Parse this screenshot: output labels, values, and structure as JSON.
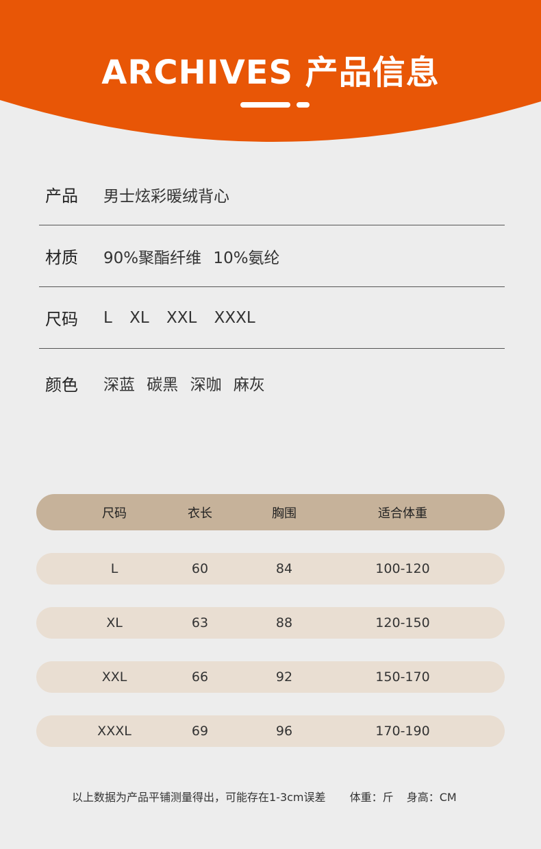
{
  "colors": {
    "accent": "#e85606",
    "background": "#ededed",
    "table_header": "#c6b29a",
    "table_row": "#e9ded2"
  },
  "header": {
    "title": "ARCHIVES 产品信息"
  },
  "info": [
    {
      "label": "产品",
      "value": "男士炫彩暖绒背心"
    },
    {
      "label": "材质",
      "value": "90%聚酯纤维 10%氨纶"
    },
    {
      "label": "尺码",
      "value": "L XL XXL XXXL"
    },
    {
      "label": "颜色",
      "value": "深蓝 碳黑 深咖 麻灰"
    }
  ],
  "size_table": {
    "headers": [
      "尺码",
      "衣长",
      "胸围",
      "适合体重"
    ],
    "rows": [
      [
        "L",
        "60",
        "84",
        "100-120"
      ],
      [
        "XL",
        "63",
        "88",
        "120-150"
      ],
      [
        "XXL",
        "66",
        "92",
        "150-170"
      ],
      [
        "XXXL",
        "69",
        "96",
        "170-190"
      ]
    ]
  },
  "note": {
    "text": "以上数据为产品平铺测量得出，可能存在1-3cm误差",
    "weight_unit": "体重：斤",
    "height_unit": "身高：CM"
  }
}
